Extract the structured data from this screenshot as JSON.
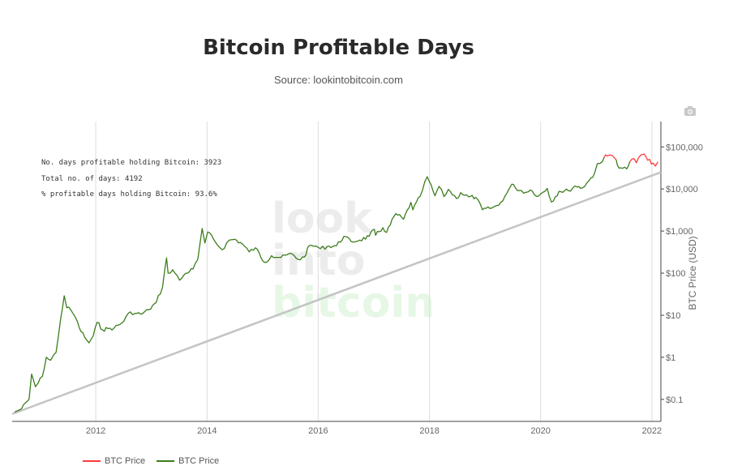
{
  "title": "Bitcoin Profitable Days",
  "subtitle": "Source: lookintobitcoin.com",
  "stats": {
    "profitable_days": "No. days profitable holding Bitcoin: 3923",
    "total_days": "Total no. of days: 4192",
    "percent_profitable": "% profitable days holding Bitcoin: 93.6%"
  },
  "watermark": [
    "look",
    "into",
    "bitcoin"
  ],
  "camera_icon": "camera-icon",
  "colors": {
    "price_green": "#3c7d1c",
    "price_red": "#ff3b3b",
    "trend_line": "#c4c4c4",
    "grid": "#dddddd",
    "watermark_gray": "#ececec",
    "watermark_green": "#e6f7e6"
  },
  "legend": [
    {
      "label": "BTC Price",
      "color": "#ff3b3b"
    },
    {
      "label": "BTC Price",
      "color": "#3c7d1c"
    }
  ],
  "chart_data": {
    "type": "line",
    "y_scale": "log",
    "ylabel": "BTC Price (USD)",
    "xlabel": "",
    "xlim": [
      "2010-07-01",
      "2022-03-01"
    ],
    "ylim": [
      0.03,
      400000
    ],
    "x_ticks": [
      {
        "date": "2012-01-01",
        "label": "2012"
      },
      {
        "date": "2014-01-01",
        "label": "2014"
      },
      {
        "date": "2016-01-01",
        "label": "2016"
      },
      {
        "date": "2018-01-01",
        "label": "2018"
      },
      {
        "date": "2020-01-01",
        "label": "2020"
      },
      {
        "date": "2022-01-01",
        "label": "2022"
      }
    ],
    "y_ticks": [
      {
        "value": 0.1,
        "label": "$0.1"
      },
      {
        "value": 1,
        "label": "$1"
      },
      {
        "value": 10,
        "label": "$10"
      },
      {
        "value": 100,
        "label": "$100"
      },
      {
        "value": 1000,
        "label": "$1,000"
      },
      {
        "value": 10000,
        "label": "$10,000"
      },
      {
        "value": 100000,
        "label": "$100,000"
      }
    ],
    "grid": "vertical",
    "trend_line": {
      "start": {
        "date": "2010-07-01",
        "value": 0.045
      },
      "end": {
        "date": "2022-03-01",
        "value": 25000
      }
    },
    "series": [
      {
        "name": "BTC Price",
        "color": "#3c7d1c",
        "points": [
          [
            "2010-07-17",
            0.05
          ],
          [
            "2010-09-01",
            0.06
          ],
          [
            "2010-10-20",
            0.1
          ],
          [
            "2010-11-06",
            0.4
          ],
          [
            "2010-12-01",
            0.2
          ],
          [
            "2010-12-20",
            0.25
          ],
          [
            "2011-01-15",
            0.35
          ],
          [
            "2011-02-10",
            1.0
          ],
          [
            "2011-03-10",
            0.85
          ],
          [
            "2011-04-15",
            1.3
          ],
          [
            "2011-05-15",
            8.0
          ],
          [
            "2011-06-08",
            29.0
          ],
          [
            "2011-06-25",
            15.0
          ],
          [
            "2011-07-20",
            13.5
          ],
          [
            "2011-08-20",
            9.0
          ],
          [
            "2011-09-15",
            5.0
          ],
          [
            "2011-10-20",
            3.0
          ],
          [
            "2011-11-18",
            2.2
          ],
          [
            "2011-12-15",
            3.2
          ],
          [
            "2012-01-10",
            6.8
          ],
          [
            "2012-02-15",
            4.5
          ],
          [
            "2012-03-20",
            4.8
          ],
          [
            "2012-05-01",
            5.0
          ],
          [
            "2012-06-20",
            6.5
          ],
          [
            "2012-08-15",
            12.0
          ],
          [
            "2012-09-15",
            11.0
          ],
          [
            "2012-11-01",
            10.7
          ],
          [
            "2012-12-15",
            13.5
          ],
          [
            "2013-02-01",
            20.0
          ],
          [
            "2013-03-15",
            47.0
          ],
          [
            "2013-04-10",
            230.0
          ],
          [
            "2013-04-20",
            100.0
          ],
          [
            "2013-05-20",
            120.0
          ],
          [
            "2013-07-05",
            68.0
          ],
          [
            "2013-08-15",
            100.0
          ],
          [
            "2013-10-01",
            125.0
          ],
          [
            "2013-11-01",
            210.0
          ],
          [
            "2013-11-30",
            1150.0
          ],
          [
            "2013-12-18",
            520.0
          ],
          [
            "2014-01-05",
            950.0
          ],
          [
            "2014-02-25",
            550.0
          ],
          [
            "2014-04-10",
            360.0
          ],
          [
            "2014-05-25",
            600.0
          ],
          [
            "2014-07-01",
            640.0
          ],
          [
            "2014-08-20",
            500.0
          ],
          [
            "2014-10-05",
            320.0
          ],
          [
            "2014-11-15",
            400.0
          ],
          [
            "2015-01-14",
            180.0
          ],
          [
            "2015-03-01",
            260.0
          ],
          [
            "2015-05-01",
            235.0
          ],
          [
            "2015-07-10",
            290.0
          ],
          [
            "2015-08-25",
            210.0
          ],
          [
            "2015-10-01",
            240.0
          ],
          [
            "2015-11-04",
            450.0
          ],
          [
            "2015-12-15",
            440.0
          ],
          [
            "2016-01-15",
            380.0
          ],
          [
            "2016-03-01",
            430.0
          ],
          [
            "2016-05-01",
            450.0
          ],
          [
            "2016-06-18",
            750.0
          ],
          [
            "2016-08-05",
            560.0
          ],
          [
            "2016-10-01",
            610.0
          ],
          [
            "2016-12-01",
            750.0
          ],
          [
            "2017-01-04",
            1100.0
          ],
          [
            "2017-01-12",
            790.0
          ],
          [
            "2017-03-01",
            1200.0
          ],
          [
            "2017-03-25",
            930.0
          ],
          [
            "2017-05-25",
            2600.0
          ],
          [
            "2017-07-15",
            1900.0
          ],
          [
            "2017-09-01",
            4800.0
          ],
          [
            "2017-09-14",
            3200.0
          ],
          [
            "2017-11-01",
            6700.0
          ],
          [
            "2017-12-17",
            19500.0
          ],
          [
            "2018-02-06",
            6900.0
          ],
          [
            "2018-03-05",
            11500.0
          ],
          [
            "2018-04-06",
            6600.0
          ],
          [
            "2018-05-05",
            9800.0
          ],
          [
            "2018-06-28",
            5900.0
          ],
          [
            "2018-07-25",
            8200.0
          ],
          [
            "2018-09-15",
            6500.0
          ],
          [
            "2018-11-01",
            6300.0
          ],
          [
            "2018-12-15",
            3200.0
          ],
          [
            "2019-02-01",
            3450.0
          ],
          [
            "2019-04-01",
            4100.0
          ],
          [
            "2019-05-25",
            8000.0
          ],
          [
            "2019-06-26",
            13000.0
          ],
          [
            "2019-07-20",
            10500.0
          ],
          [
            "2019-09-25",
            8300.0
          ],
          [
            "2019-10-27",
            9500.0
          ],
          [
            "2019-12-17",
            6700.0
          ],
          [
            "2020-02-13",
            10300.0
          ],
          [
            "2020-03-12",
            4900.0
          ],
          [
            "2020-05-01",
            8800.0
          ],
          [
            "2020-07-01",
            9100.0
          ],
          [
            "2020-08-15",
            11800.0
          ],
          [
            "2020-10-01",
            10600.0
          ],
          [
            "2020-11-15",
            16000.0
          ],
          [
            "2020-12-20",
            23500.0
          ],
          [
            "2021-01-08",
            40000.0
          ],
          [
            "2021-02-10",
            45000.0
          ],
          [
            "2021-02-21",
            56000.0
          ]
        ]
      },
      {
        "name": "BTC Price",
        "color": "#ff3b3b",
        "points": [
          [
            "2021-02-21",
            56000.0
          ],
          [
            "2021-03-13",
            61000.0
          ],
          [
            "2021-04-14",
            63000.0
          ],
          [
            "2021-05-12",
            49000.0
          ]
        ]
      },
      {
        "name": "BTC Price",
        "color": "#3c7d1c",
        "points": [
          [
            "2021-05-12",
            49000.0
          ],
          [
            "2021-05-19",
            37000.0
          ],
          [
            "2021-06-22",
            31000.0
          ],
          [
            "2021-07-20",
            30000.0
          ],
          [
            "2021-08-10",
            45000.0
          ]
        ]
      },
      {
        "name": "BTC Price",
        "color": "#ff3b3b",
        "points": [
          [
            "2021-08-10",
            45000.0
          ],
          [
            "2021-09-07",
            52000.0
          ],
          [
            "2021-09-21",
            42000.0
          ],
          [
            "2021-10-20",
            64000.0
          ],
          [
            "2021-11-10",
            68000.0
          ],
          [
            "2021-12-04",
            48000.0
          ],
          [
            "2022-01-10",
            41000.0
          ],
          [
            "2022-01-24",
            35000.0
          ],
          [
            "2022-02-10",
            44000.0
          ]
        ]
      }
    ]
  }
}
